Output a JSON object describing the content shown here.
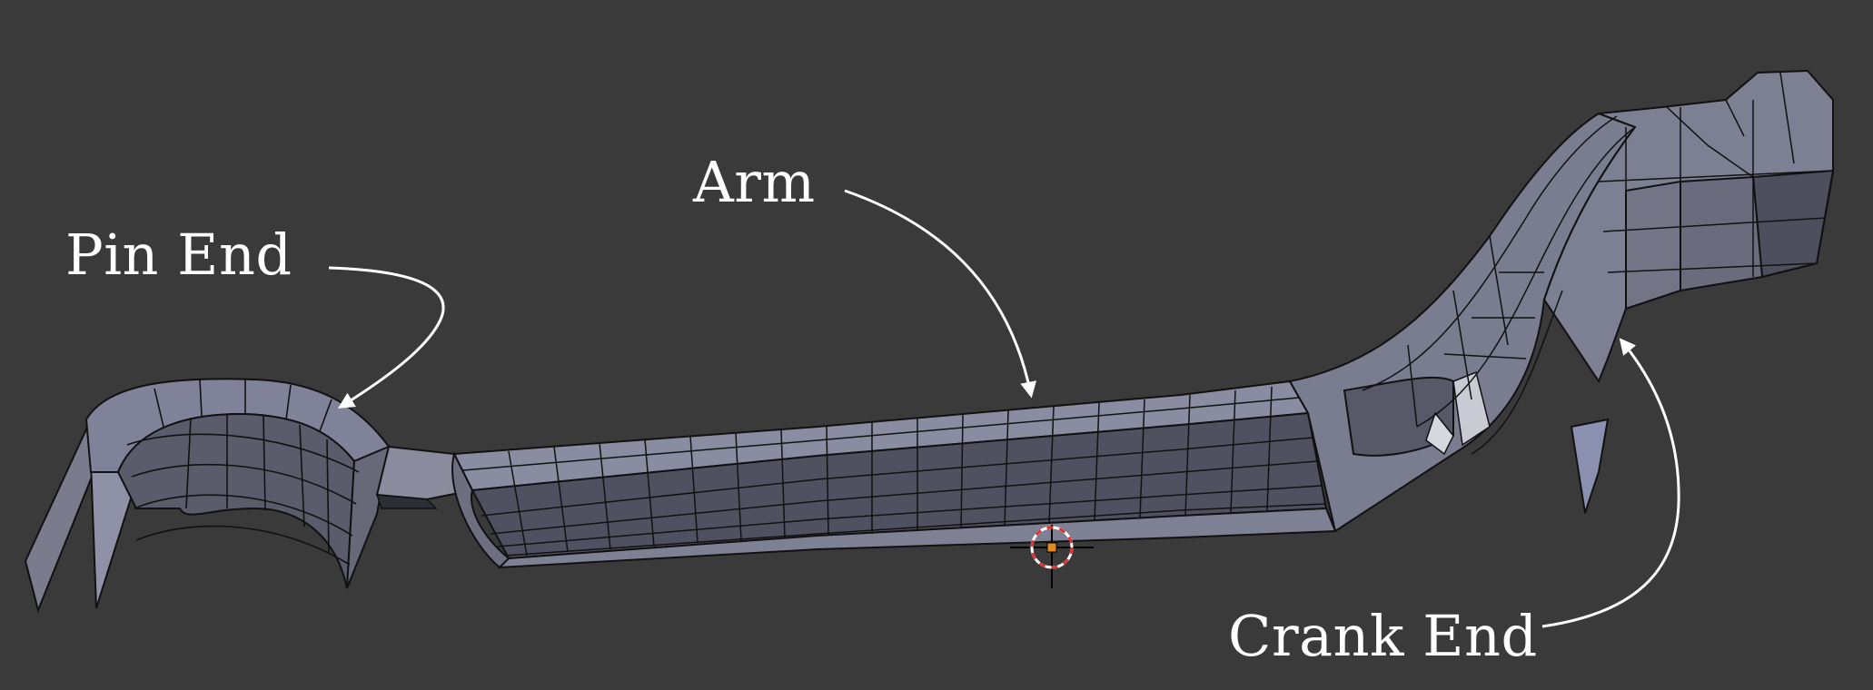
{
  "viewport": {
    "background_color": "#3a3a3a",
    "mesh_fill_color": "#7a7c8e",
    "mesh_dark_color": "#4c4d5a",
    "mesh_light_color": "#a8a9b6",
    "wire_color": "#111111",
    "cursor_colors": {
      "ring_red": "#e23232",
      "ring_white": "#ffffff",
      "center": "#e08a20"
    }
  },
  "annotations": {
    "pin_end": "Pin End",
    "arm": "Arm",
    "crank_end": "Crank End"
  },
  "icons": {
    "cursor": "3d-cursor-icon"
  }
}
